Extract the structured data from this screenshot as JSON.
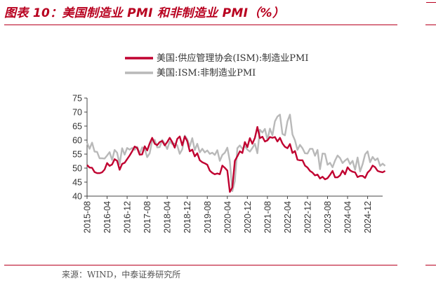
{
  "title": "图表 10：美国制造业 PMI 和非制造业 PMI（%）",
  "source": "来源：WIND，中泰证券研究所",
  "chart_data": {
    "type": "line",
    "ylim": [
      40,
      75
    ],
    "yticks": [
      40,
      45,
      50,
      55,
      60,
      65,
      70,
      75
    ],
    "x_start": "2015-08",
    "x_end": "2025-06",
    "xticks": [
      "2015-08",
      "2016-04",
      "2016-12",
      "2017-08",
      "2018-04",
      "2018-12",
      "2019-08",
      "2020-04",
      "2020-12",
      "2021-08",
      "2022-04",
      "2022-12",
      "2023-08",
      "2024-04",
      "2024-12"
    ],
    "grid": false,
    "legend_position": "top-left",
    "series": [
      {
        "name": "美国:供应管理协会(ISM):制造业PMI",
        "color": "#c00030",
        "values": [
          51.1,
          50.2,
          50.1,
          48.6,
          48.2,
          48.2,
          48.5,
          49.5,
          51.8,
          50.8,
          51.3,
          53.2,
          52.6,
          49.4,
          51.5,
          51.9,
          53.2,
          54.5,
          56.0,
          57.7,
          57.2,
          54.8,
          54.9,
          57.8,
          56.3,
          58.8,
          60.8,
          58.7,
          58.2,
          59.3,
          59.7,
          58.1,
          59.3,
          60.8,
          59.3,
          57.3,
          60.4,
          61.3,
          58.1,
          61.3,
          59.6,
          56.0,
          56.6,
          54.2,
          55.3,
          52.8,
          52.1,
          51.7,
          51.2,
          49.1,
          48.3,
          47.8,
          48.1,
          47.8,
          50.9,
          50.1,
          49.1,
          41.5,
          43.1,
          52.6,
          54.2,
          56.0,
          55.4,
          59.3,
          57.5,
          60.7,
          58.7,
          60.8,
          64.7,
          60.7,
          61.2,
          59.5,
          59.9,
          61.1,
          60.8,
          61.1,
          59.5,
          60.8,
          58.8,
          57.6,
          57.1,
          58.6,
          55.4,
          56.1,
          53.0,
          52.8,
          52.8,
          50.9,
          50.2,
          49.0,
          48.4,
          47.4,
          47.7,
          46.3,
          46.9,
          46.0,
          46.4,
          47.6,
          49.0,
          46.7,
          46.7,
          47.4,
          49.1,
          47.8,
          50.3,
          49.2,
          48.7,
          48.5,
          46.8,
          47.2,
          47.2,
          46.5,
          48.4,
          49.3,
          50.9,
          50.3,
          49.0,
          48.7,
          48.5,
          49.0
        ]
      },
      {
        "name": "美国:ISM:非制造业PMI",
        "color": "#b9b9b9",
        "values": [
          59.0,
          56.9,
          59.1,
          55.9,
          55.8,
          53.5,
          53.5,
          53.4,
          54.5,
          55.7,
          52.9,
          56.5,
          55.5,
          51.4,
          57.1,
          54.8,
          57.2,
          56.6,
          57.2,
          56.5,
          57.6,
          55.2,
          57.4,
          56.9,
          53.9,
          55.3,
          59.8,
          60.1,
          57.4,
          57.5,
          60.1,
          58.7,
          56.8,
          59.5,
          58.6,
          58.8,
          58.1,
          55.1,
          56.7,
          61.6,
          60.3,
          57.7,
          60.7,
          56.4,
          58.7,
          55.6,
          56.9,
          55.6,
          56.3,
          55.1,
          55.5,
          54.7,
          56.4,
          52.6,
          54.7,
          55.5,
          57.3,
          52.5,
          41.8,
          45.4,
          57.1,
          58.1,
          56.9,
          57.8,
          56.6,
          55.9,
          57.2,
          58.7,
          55.3,
          63.7,
          62.7,
          64.0,
          60.1,
          64.1,
          61.7,
          66.7,
          68.4,
          69.1,
          62.2,
          61.7,
          66.7,
          69.1,
          62.0,
          59.9,
          56.5,
          58.3,
          57.1,
          55.3,
          55.2,
          56.9,
          56.9,
          54.4,
          56.5,
          49.6,
          55.2,
          55.1,
          51.2,
          51.9,
          50.3,
          52.7,
          54.5,
          53.6,
          51.8,
          52.7,
          53.4,
          51.4,
          52.6,
          49.4,
          53.8,
          48.8,
          51.4,
          54.9,
          56.0,
          52.1,
          54.0,
          52.8,
          53.5,
          50.8,
          51.6,
          50.8
        ]
      }
    ]
  }
}
